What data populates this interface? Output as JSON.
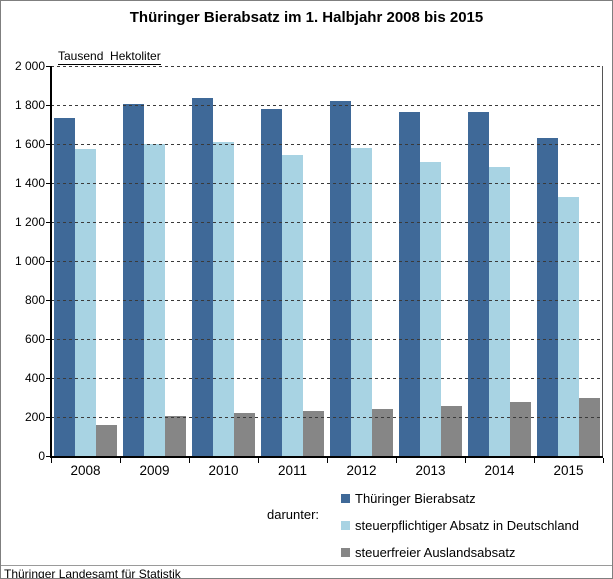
{
  "chart": {
    "title": "Thüringer Bierabsatz im 1. Halbjahr 2008 bis 2015",
    "unit_label": "Tausend  Hektoliter",
    "legend_prefix": "darunter:",
    "source": "Thüringer Landesamt für Statistik"
  },
  "colors": {
    "dark_blue": "#3f6998",
    "light_blue": "#a8d3e3",
    "gray": "#868686",
    "frame_border": "#7f7f7f"
  },
  "chart_data": {
    "type": "bar",
    "title": "Thüringer Bierabsatz im 1. Halbjahr 2008 bis 2015",
    "ylabel": "Tausend Hektoliter",
    "xlabel": "",
    "ylim": [
      0,
      2000
    ],
    "ytick_step": 200,
    "ytick_labels": [
      "0",
      "200",
      "400",
      "600",
      "800",
      "1 000",
      "1 200",
      "1 400",
      "1 600",
      "1 800",
      "2 000"
    ],
    "grid": "horizontal-dashed",
    "legend_position": "bottom-right",
    "categories": [
      "2008",
      "2009",
      "2010",
      "2011",
      "2012",
      "2013",
      "2014",
      "2015"
    ],
    "series": [
      {
        "name": "Thüringer Bierabsatz",
        "color": "#3f6998",
        "values": [
          1733,
          1805,
          1835,
          1780,
          1822,
          1766,
          1765,
          1632
        ]
      },
      {
        "name": "steuerpflichtiger Absatz in Deutschland",
        "color": "#a8d3e3",
        "values": [
          1573,
          1598,
          1608,
          1542,
          1577,
          1506,
          1484,
          1330
        ]
      },
      {
        "name": "steuerfreier Auslandsabsatz",
        "color": "#868686",
        "values": [
          158,
          206,
          222,
          232,
          241,
          258,
          276,
          298
        ]
      }
    ]
  }
}
